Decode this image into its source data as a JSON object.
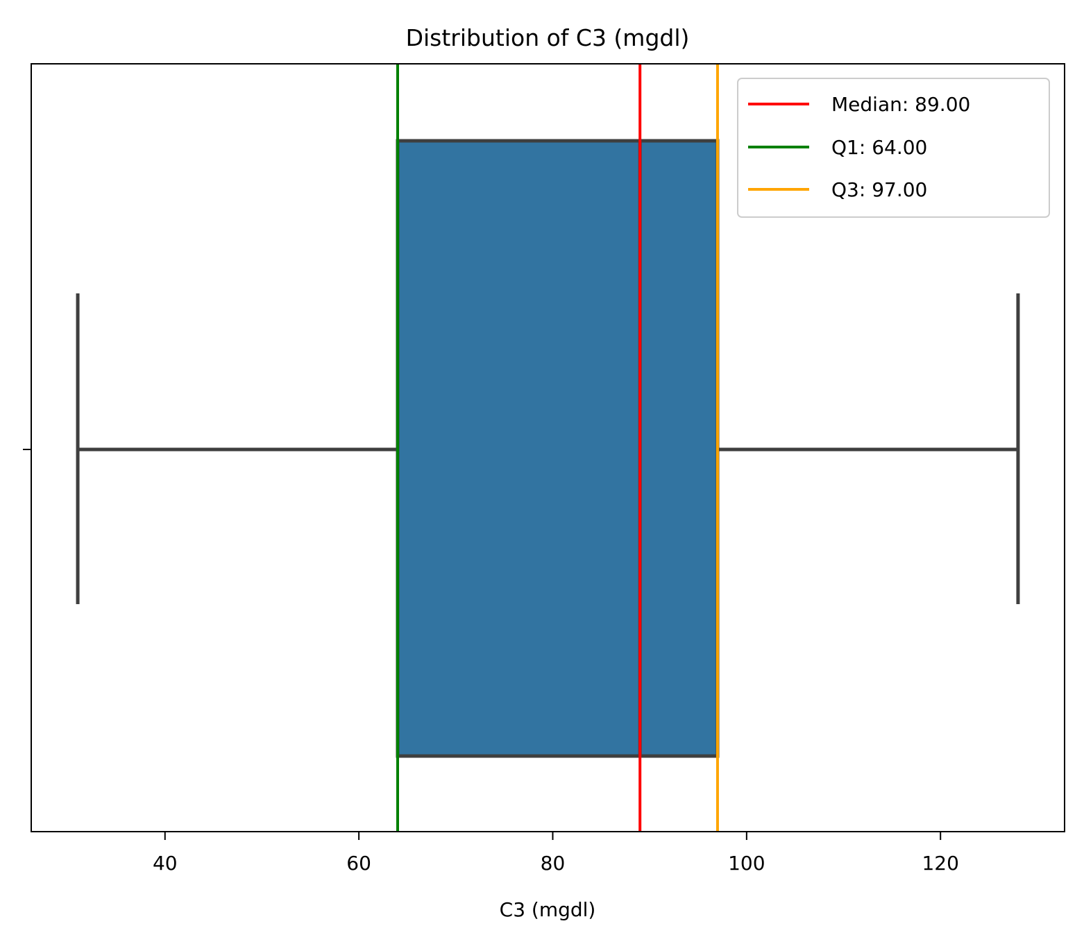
{
  "chart_data": {
    "type": "boxplot",
    "orientation": "horizontal",
    "title": "Distribution of C3 (mgdl)",
    "xlabel": "C3 (mgdl)",
    "ylabel": "",
    "xlim": [
      26.2,
      132.8
    ],
    "x_ticks": [
      40,
      60,
      80,
      100,
      120
    ],
    "x_tick_labels": [
      "40",
      "60",
      "80",
      "100",
      "120"
    ],
    "box": {
      "whisker_low": 31,
      "q1": 64,
      "median": 89,
      "q3": 97,
      "whisker_high": 128,
      "fill_color": "#3274a1",
      "edge_color": "#3f3f3f"
    },
    "reference_lines": [
      {
        "name": "Median",
        "value": 89,
        "color": "#ff0000",
        "label": "Median: 89.00"
      },
      {
        "name": "Q1",
        "value": 64,
        "color": "#008000",
        "label": "Q1: 64.00"
      },
      {
        "name": "Q3",
        "value": 97,
        "color": "#ffa500",
        "label": "Q3: 97.00"
      }
    ],
    "legend_position": "top-right",
    "grid": false
  }
}
